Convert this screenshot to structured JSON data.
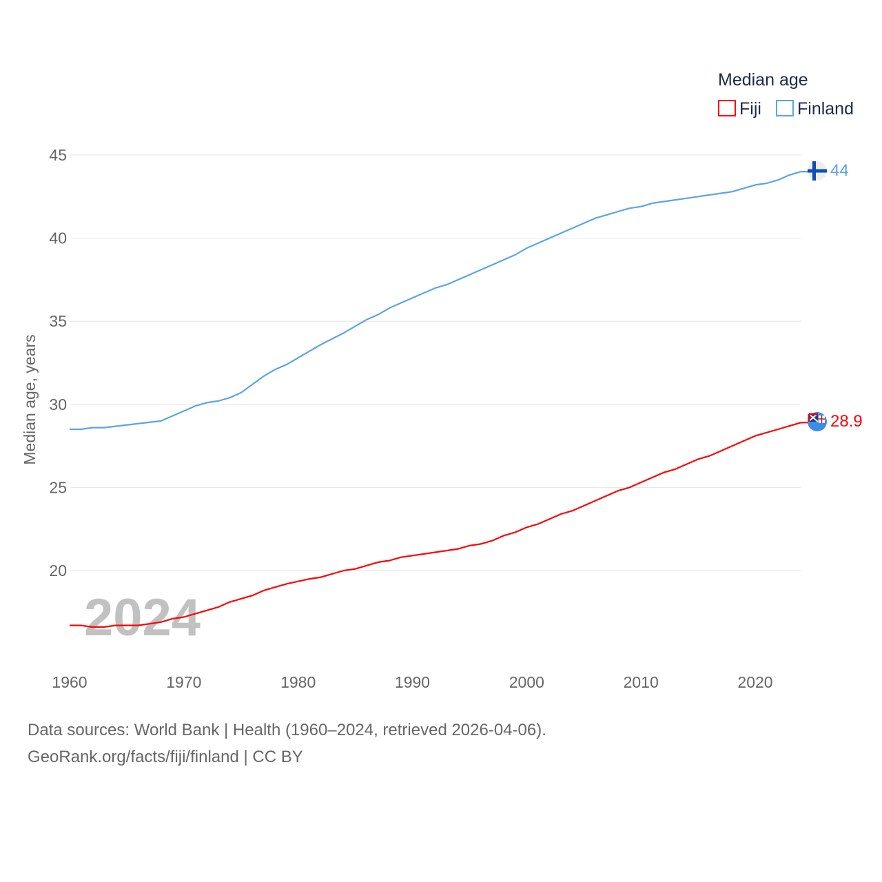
{
  "chart_data": {
    "type": "line",
    "title": "Median age",
    "ylabel": "Median age, years",
    "xlabel": "",
    "xlim": [
      1960,
      2024
    ],
    "ylim": [
      16.5,
      45
    ],
    "yticks": [
      20,
      25,
      30,
      35,
      40,
      45
    ],
    "xticks": [
      1960,
      1970,
      1980,
      1990,
      2000,
      2010,
      2020
    ],
    "grid": true,
    "legend_placement": "top-right",
    "year_label": "2024",
    "series": [
      {
        "name": "Fiji",
        "color": "#ff0000",
        "end_label": "28.9",
        "flag": "fiji-flag",
        "x": [
          1960,
          1961,
          1962,
          1963,
          1964,
          1966,
          1968,
          1969,
          1970,
          1971,
          1973,
          1974,
          1976,
          1977,
          1978,
          1979,
          1981,
          1982,
          1984,
          1985,
          1987,
          1988,
          1989,
          1990,
          1992,
          1994,
          1995,
          1996,
          1997,
          1998,
          1999,
          2000,
          2001,
          2003,
          2004,
          2006,
          2008,
          2009,
          2011,
          2012,
          2013,
          2015,
          2016,
          2018,
          2020,
          2022,
          2024
        ],
        "y": [
          16.7,
          16.7,
          16.6,
          16.6,
          16.7,
          16.7,
          16.9,
          17.1,
          17.2,
          17.4,
          17.8,
          18.1,
          18.5,
          18.8,
          19.0,
          19.2,
          19.5,
          19.6,
          20.0,
          20.1,
          20.5,
          20.6,
          20.8,
          20.9,
          21.1,
          21.3,
          21.5,
          21.6,
          21.8,
          22.1,
          22.3,
          22.6,
          22.8,
          23.4,
          23.6,
          24.2,
          24.8,
          25.0,
          25.6,
          25.9,
          26.1,
          26.7,
          26.9,
          27.5,
          28.1,
          28.5,
          28.9
        ]
      },
      {
        "name": "Finland",
        "color": "#5ba3e8",
        "end_label": "44",
        "flag": "finland-flag",
        "x": [
          1960,
          1961,
          1962,
          1963,
          1968,
          1971,
          1972,
          1973,
          1974,
          1975,
          1977,
          1978,
          1979,
          1981,
          1982,
          1984,
          1986,
          1987,
          1988,
          1990,
          1992,
          1993,
          1995,
          1997,
          1999,
          2000,
          2002,
          2004,
          2006,
          2008,
          2009,
          2010,
          2011,
          2013,
          2015,
          2018,
          2020,
          2021,
          2022,
          2023,
          2024
        ],
        "y": [
          28.5,
          28.5,
          28.6,
          28.6,
          29.0,
          29.9,
          30.1,
          30.2,
          30.4,
          30.7,
          31.7,
          32.1,
          32.4,
          33.2,
          33.6,
          34.3,
          35.1,
          35.4,
          35.8,
          36.4,
          37.0,
          37.2,
          37.8,
          38.4,
          39.0,
          39.4,
          40.0,
          40.6,
          41.2,
          41.6,
          41.8,
          41.9,
          42.1,
          42.3,
          42.5,
          42.8,
          43.2,
          43.3,
          43.5,
          43.8,
          44.0
        ]
      }
    ]
  },
  "footer": {
    "line1": "Data sources: World Bank | Health (1960–2024, retrieved 2026-04-06).",
    "line2": "GeoRank.org/facts/fiji/finland | CC BY"
  }
}
